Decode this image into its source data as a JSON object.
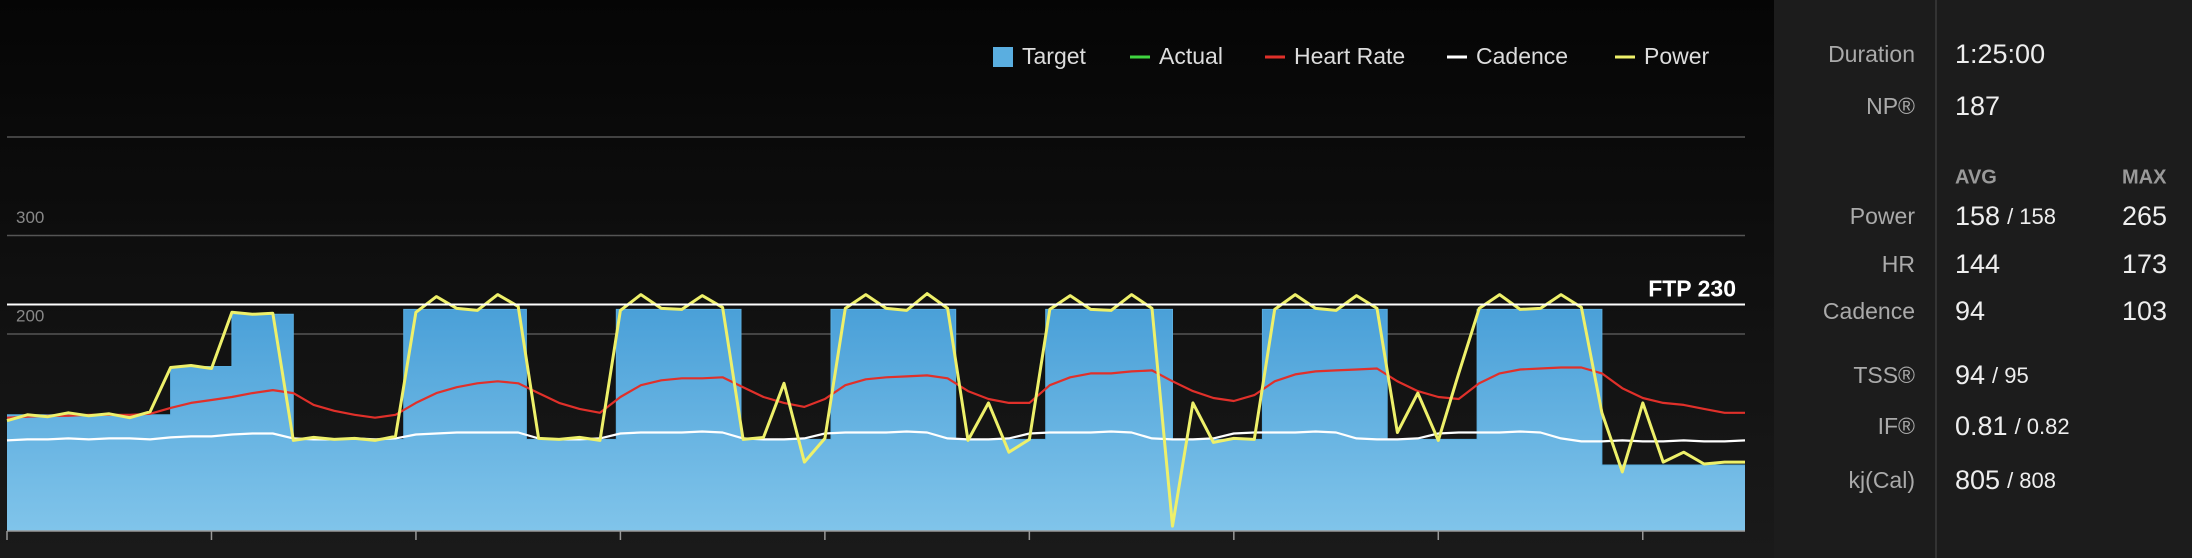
{
  "chart_data": {
    "type": "line",
    "ylim": [
      0,
      400
    ],
    "yticks": [
      200,
      300
    ],
    "xlim": [
      0,
      85
    ],
    "xticks": [
      0,
      10,
      20,
      30,
      40,
      50,
      60,
      70,
      80
    ],
    "grid": true,
    "annotation": {
      "label": "FTP 230",
      "value": 230
    },
    "x": [
      0,
      1,
      2,
      3,
      4,
      5,
      6,
      7,
      8,
      9,
      10,
      11,
      12,
      13,
      14,
      15,
      16,
      17,
      18,
      19,
      20,
      21,
      22,
      23,
      24,
      25,
      26,
      27,
      28,
      29,
      30,
      31,
      32,
      33,
      34,
      35,
      36,
      37,
      38,
      39,
      40,
      41,
      42,
      43,
      44,
      45,
      46,
      47,
      48,
      49,
      50,
      51,
      52,
      53,
      54,
      55,
      56,
      57,
      58,
      59,
      60,
      61,
      62,
      63,
      64,
      65,
      66,
      67,
      68,
      69,
      70,
      71,
      72,
      73,
      74,
      75,
      76,
      77,
      78,
      79,
      80,
      81,
      82,
      83,
      84,
      85
    ],
    "series": [
      {
        "name": "Target",
        "color": "#5aaee0",
        "area": true,
        "x": [
          0,
          8,
          8,
          11,
          11,
          14,
          14,
          19.4,
          19.4,
          25.4,
          25.4,
          29.8,
          29.8,
          35.9,
          35.9,
          40.3,
          40.3,
          46.4,
          46.4,
          50.8,
          50.8,
          57,
          57,
          61.4,
          61.4,
          67.5,
          67.5,
          71.9,
          71.9,
          78,
          78,
          85
        ],
        "values": [
          118,
          118,
          167,
          167,
          220,
          220,
          93,
          93,
          225,
          225,
          93,
          93,
          225,
          225,
          93,
          93,
          225,
          225,
          93,
          93,
          225,
          225,
          93,
          93,
          225,
          225,
          93,
          93,
          225,
          225,
          67,
          67
        ]
      },
      {
        "name": "Actual",
        "color": "#3fd43f"
      },
      {
        "name": "Heart Rate",
        "color": "#e0302a",
        "values": [
          115,
          116,
          117,
          117,
          118,
          118,
          118,
          119,
          125,
          130,
          133,
          136,
          140,
          143,
          140,
          128,
          122,
          118,
          115,
          118,
          130,
          140,
          146,
          150,
          152,
          150,
          140,
          130,
          124,
          120,
          136,
          148,
          153,
          155,
          155,
          156,
          146,
          136,
          130,
          126,
          134,
          148,
          154,
          156,
          157,
          158,
          155,
          142,
          134,
          130,
          130,
          148,
          156,
          160,
          160,
          162,
          163,
          152,
          142,
          135,
          132,
          138,
          152,
          159,
          162,
          163,
          164,
          165,
          152,
          142,
          136,
          134,
          150,
          160,
          164,
          165,
          166,
          166,
          160,
          145,
          135,
          130,
          128,
          124,
          120,
          120
        ]
      },
      {
        "name": "Cadence",
        "color": "#ffffff",
        "values": [
          92,
          93,
          93,
          94,
          93,
          94,
          94,
          93,
          95,
          96,
          96,
          98,
          99,
          99,
          94,
          93,
          93,
          94,
          93,
          94,
          98,
          99,
          100,
          100,
          100,
          100,
          94,
          93,
          93,
          94,
          99,
          100,
          100,
          100,
          101,
          100,
          94,
          93,
          93,
          94,
          99,
          100,
          100,
          100,
          101,
          100,
          94,
          93,
          93,
          94,
          99,
          100,
          100,
          100,
          101,
          100,
          94,
          93,
          93,
          94,
          99,
          100,
          100,
          100,
          101,
          100,
          94,
          93,
          93,
          94,
          99,
          100,
          100,
          100,
          101,
          100,
          94,
          91,
          91,
          92,
          91,
          91,
          92,
          91,
          91,
          92
        ]
      },
      {
        "name": "Power",
        "color": "#eef06a",
        "values": [
          112,
          118,
          116,
          120,
          117,
          119,
          115,
          121,
          166,
          168,
          165,
          222,
          220,
          221,
          92,
          95,
          93,
          94,
          92,
          96,
          222,
          238,
          226,
          224,
          240,
          228,
          94,
          93,
          95,
          92,
          224,
          240,
          226,
          225,
          239,
          227,
          93,
          95,
          150,
          70,
          94,
          226,
          240,
          226,
          224,
          241,
          226,
          92,
          130,
          80,
          93,
          225,
          239,
          225,
          224,
          240,
          226,
          5,
          130,
          90,
          94,
          93,
          225,
          240,
          226,
          224,
          239,
          226,
          100,
          140,
          92,
          160,
          226,
          240,
          225,
          226,
          240,
          227,
          120,
          60,
          130,
          70,
          80,
          68,
          70,
          70
        ]
      }
    ]
  },
  "stats": {
    "avg_header": "AVG",
    "max_header": "MAX",
    "rows": [
      {
        "label": "Duration",
        "value": "1:25:00"
      },
      {
        "label": "NP®",
        "value": "187"
      },
      {
        "label": "Power",
        "avg": "158",
        "avg2": "/ 158",
        "max": "265"
      },
      {
        "label": "HR",
        "avg": "144",
        "max": "173"
      },
      {
        "label": "Cadence",
        "avg": "94",
        "max": "103"
      },
      {
        "label": "TSS®",
        "value": "94",
        "value2": "/ 95"
      },
      {
        "label": "IF®",
        "value": "0.81",
        "value2": "/ 0.82"
      },
      {
        "label": "kj(Cal)",
        "value": "805",
        "value2": "/ 808"
      }
    ]
  }
}
